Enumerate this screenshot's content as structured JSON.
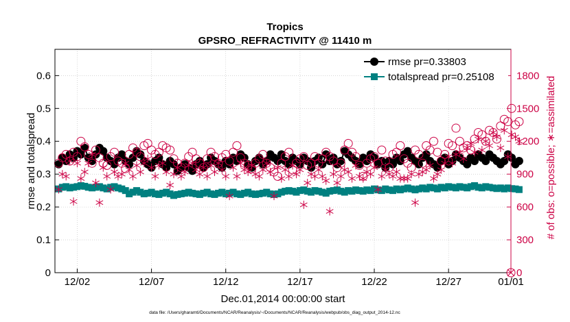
{
  "chart_data": {
    "type": "line",
    "title": "Tropics",
    "subtitle": "GPSRO_REFRACTIVITY @ 11410 m",
    "xlabel": "Dec.01,2014 00:00:00 start",
    "ylabel": "rmse and totalspread",
    "y2label": "# of obs: o=possible; ∗=assimilated",
    "footer": "data file: /Users/gharamti/Documents/NCAR/Reanalysis/~/Documents/NCAR/Reanalysis/webpub/obs_diag_output_2014-12.nc",
    "grid": true,
    "legend_position": "top-right",
    "xlim": [
      0.5,
      31.2
    ],
    "ylim": [
      0,
      0.68
    ],
    "y2lim": [
      0,
      2040
    ],
    "x_ticks": [
      {
        "value": 2,
        "label": "12/02"
      },
      {
        "value": 7,
        "label": "12/07"
      },
      {
        "value": 12,
        "label": "12/12"
      },
      {
        "value": 17,
        "label": "12/17"
      },
      {
        "value": 22,
        "label": "12/22"
      },
      {
        "value": 27,
        "label": "12/27"
      },
      {
        "value": 32,
        "label": "01/01"
      }
    ],
    "y_ticks": [
      {
        "value": 0,
        "label": "0"
      },
      {
        "value": 0.1,
        "label": "0.1"
      },
      {
        "value": 0.2,
        "label": "0.2"
      },
      {
        "value": 0.3,
        "label": "0.3"
      },
      {
        "value": 0.4,
        "label": "0.4"
      },
      {
        "value": 0.5,
        "label": "0.5"
      },
      {
        "value": 0.6,
        "label": "0.6"
      }
    ],
    "y2_ticks": [
      {
        "value": 0,
        "label": "0"
      },
      {
        "value": 300,
        "label": "300"
      },
      {
        "value": 600,
        "label": "600"
      },
      {
        "value": 900,
        "label": "900"
      },
      {
        "value": 1200,
        "label": "1200"
      },
      {
        "value": 1500,
        "label": "1500"
      },
      {
        "value": 1800,
        "label": "1800"
      }
    ],
    "series": [
      {
        "name": "rmse pr=0.33803",
        "axis": "left",
        "color": "#000000",
        "marker": "circle",
        "start": 0.75,
        "step": 0.25,
        "values": [
          0.33,
          0.35,
          0.34,
          0.36,
          0.35,
          0.37,
          0.36,
          0.38,
          0.35,
          0.34,
          0.36,
          0.38,
          0.37,
          0.35,
          0.34,
          0.33,
          0.35,
          0.36,
          0.34,
          0.33,
          0.35,
          0.37,
          0.36,
          0.34,
          0.33,
          0.32,
          0.34,
          0.35,
          0.33,
          0.32,
          0.34,
          0.33,
          0.31,
          0.32,
          0.33,
          0.32,
          0.31,
          0.33,
          0.34,
          0.32,
          0.33,
          0.35,
          0.34,
          0.33,
          0.32,
          0.34,
          0.33,
          0.35,
          0.34,
          0.36,
          0.35,
          0.33,
          0.32,
          0.34,
          0.35,
          0.33,
          0.34,
          0.36,
          0.35,
          0.34,
          0.36,
          0.34,
          0.33,
          0.35,
          0.34,
          0.33,
          0.35,
          0.34,
          0.32,
          0.34,
          0.35,
          0.33,
          0.36,
          0.34,
          0.35,
          0.33,
          0.34,
          0.37,
          0.36,
          0.35,
          0.34,
          0.33,
          0.35,
          0.34,
          0.36,
          0.35,
          0.33,
          0.34,
          0.32,
          0.34,
          0.33,
          0.35,
          0.34,
          0.36,
          0.37,
          0.35,
          0.34,
          0.33,
          0.35,
          0.36,
          0.34,
          0.33,
          0.32,
          0.34,
          0.35,
          0.33,
          0.34,
          0.36,
          0.35,
          0.34,
          0.33,
          0.35,
          0.34,
          0.36,
          0.35,
          0.34,
          0.36,
          0.35,
          0.34,
          0.33,
          0.34,
          0.36,
          0.35,
          0.33,
          0.34
        ]
      },
      {
        "name": "totalspread pr=0.25108",
        "axis": "left",
        "color": "#008080",
        "marker": "square",
        "start": 0.75,
        "step": 0.25,
        "values": [
          0.255,
          0.26,
          0.262,
          0.258,
          0.26,
          0.262,
          0.265,
          0.263,
          0.26,
          0.258,
          0.26,
          0.262,
          0.258,
          0.255,
          0.26,
          0.262,
          0.258,
          0.255,
          0.25,
          0.24,
          0.245,
          0.25,
          0.245,
          0.24,
          0.242,
          0.245,
          0.24,
          0.238,
          0.242,
          0.245,
          0.24,
          0.235,
          0.238,
          0.24,
          0.242,
          0.245,
          0.242,
          0.24,
          0.238,
          0.242,
          0.245,
          0.24,
          0.238,
          0.242,
          0.245,
          0.24,
          0.242,
          0.245,
          0.24,
          0.238,
          0.242,
          0.245,
          0.24,
          0.238,
          0.24,
          0.242,
          0.245,
          0.24,
          0.238,
          0.24,
          0.245,
          0.248,
          0.25,
          0.248,
          0.245,
          0.25,
          0.252,
          0.248,
          0.245,
          0.25,
          0.248,
          0.245,
          0.242,
          0.248,
          0.25,
          0.252,
          0.248,
          0.245,
          0.25,
          0.248,
          0.252,
          0.25,
          0.248,
          0.252,
          0.25,
          0.255,
          0.252,
          0.25,
          0.255,
          0.252,
          0.25,
          0.255,
          0.252,
          0.255,
          0.258,
          0.255,
          0.252,
          0.255,
          0.258,
          0.255,
          0.26,
          0.258,
          0.255,
          0.26,
          0.258,
          0.262,
          0.26,
          0.258,
          0.262,
          0.26,
          0.258,
          0.262,
          0.265,
          0.26,
          0.258,
          0.262,
          0.26,
          0.258,
          0.256,
          0.258,
          0.255,
          0.258,
          0.256,
          0.255,
          0.253
        ]
      },
      {
        "name": "possible",
        "axis": "right",
        "color": "#cc0044",
        "marker": "open-circle",
        "start": 0.75,
        "step": 0.25,
        "values": [
          1000,
          1050,
          1080,
          1020,
          1100,
          1060,
          1200,
          1150,
          1080,
          1000,
          1120,
          1050,
          1000,
          980,
          1060,
          1100,
          1020,
          1000,
          950,
          1080,
          1140,
          1100,
          1060,
          1160,
          1180,
          1120,
          1080,
          1100,
          1160,
          1140,
          1120,
          1040,
          1000,
          960,
          1000,
          1060,
          1100,
          1040,
          1000,
          960,
          1040,
          1100,
          1060,
          1000,
          1050,
          1080,
          1020,
          1100,
          1160,
          1050,
          1000,
          980,
          950,
          1000,
          1040,
          1080,
          1000,
          960,
          920,
          880,
          1000,
          1060,
          1100,
          940,
          1000,
          1040,
          1060,
          980,
          1000,
          1060,
          1000,
          1040,
          1100,
          1060,
          1020,
          960,
          1000,
          1120,
          1180,
          1100,
          1060,
          980,
          880,
          1000,
          1040,
          1060,
          1000,
          1120,
          1020,
          960,
          1080,
          1100,
          1160,
          1040,
          1000,
          960,
          1120,
          1080,
          1000,
          1160,
          1120,
          1200,
          1100,
          1020,
          1080,
          1180,
          1160,
          1320,
          1200,
          1140,
          1160,
          1120,
          1220,
          1280,
          1260,
          1200,
          1300,
          1280,
          1220,
          1340,
          1400,
          1380,
          1500,
          1350,
          1380
        ]
      },
      {
        "name": "assimilated",
        "axis": "right",
        "color": "#cc0044",
        "marker": "asterisk",
        "start": 0.75,
        "step": 0.25,
        "values": [
          760,
          900,
          880,
          1020,
          650,
          1000,
          860,
          920,
          1000,
          1080,
          820,
          640,
          960,
          880,
          760,
          920,
          880,
          900,
          1000,
          940,
          880,
          980,
          920,
          1000,
          1040,
          960,
          880,
          980,
          1000,
          920,
          800,
          900,
          960,
          880,
          920,
          980,
          1000,
          940,
          900,
          960,
          880,
          980,
          920,
          1000,
          940,
          880,
          700,
          960,
          880,
          1000,
          940,
          920,
          980,
          900,
          880,
          940,
          1000,
          920,
          700,
          960,
          860,
          940,
          880,
          980,
          900,
          940,
          620,
          820,
          900,
          880,
          940,
          880,
          840,
          560,
          900,
          820,
          880,
          940,
          920,
          860,
          980,
          880,
          860,
          920,
          900,
          960,
          760,
          880,
          940,
          900,
          880,
          920,
          860,
          860,
          860,
          900,
          640,
          900,
          920,
          940,
          980,
          860,
          900,
          940,
          1000,
          1060,
          1000,
          1080,
          1100,
          1040,
          1140,
          1180,
          1100,
          1220,
          1120,
          1200,
          1160,
          1280,
          1240,
          1140,
          1300,
          1060,
          1260,
          1240,
          1200
        ]
      }
    ]
  }
}
